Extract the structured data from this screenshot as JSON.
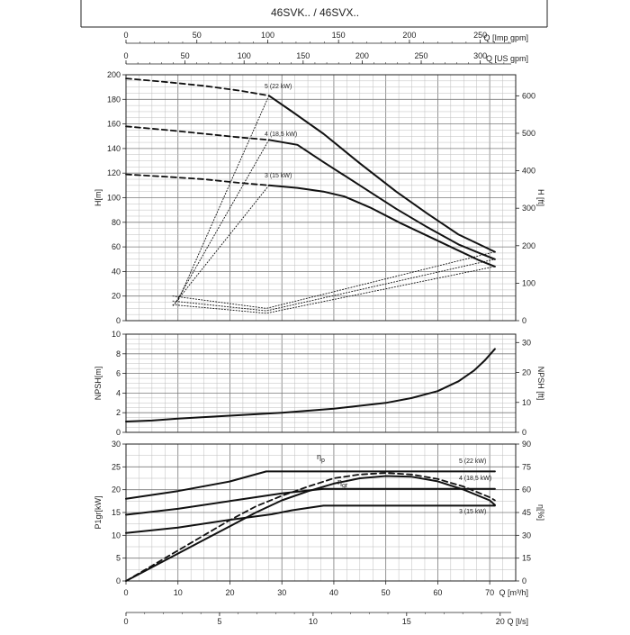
{
  "header": {
    "title": "46SVK.. / 46SVX.."
  },
  "colors": {
    "curve": "#111111",
    "grid_minor": "#bdbdbd",
    "grid_major": "#7a7a7a",
    "frame": "#222222"
  },
  "chart_data": [
    {
      "type": "line",
      "id": "head",
      "x_unit": "m3/h",
      "xlim": [
        0,
        75
      ],
      "ylim": [
        0,
        200
      ],
      "ylabel": "H[m]",
      "ylabel_right": "H [ft]",
      "yticks": [
        0,
        20,
        40,
        60,
        80,
        100,
        120,
        140,
        160,
        180,
        200
      ],
      "yticks_right": [
        0,
        100,
        200,
        300,
        400,
        500,
        600
      ],
      "top_axes": [
        {
          "label": "Q [Imp gpm]",
          "ticks": [
            0,
            50,
            100,
            150,
            200,
            250
          ],
          "max": 275
        },
        {
          "label": "Q [US gpm]",
          "ticks": [
            0,
            50,
            100,
            150,
            200,
            250,
            300
          ],
          "max": 330
        }
      ],
      "series": [
        {
          "name": "5 (22 kW)",
          "style": "solid",
          "x": [
            27.5,
            32,
            38,
            45,
            52,
            58,
            64,
            68,
            71
          ],
          "y": [
            183,
            170,
            152,
            128,
            105,
            87,
            70,
            62,
            56
          ]
        },
        {
          "name": "4 (18,5 kW)",
          "style": "solid",
          "x": [
            27.5,
            33,
            38,
            45,
            52,
            58,
            64,
            68,
            71
          ],
          "y": [
            147,
            143,
            129,
            110,
            91,
            76,
            62,
            55,
            50
          ]
        },
        {
          "name": "3 (15 kW)",
          "style": "solid",
          "x": [
            27.5,
            33,
            38,
            42,
            47,
            53,
            58,
            64,
            68,
            71
          ],
          "y": [
            110,
            108,
            105,
            101,
            92,
            79,
            69,
            57,
            49,
            44
          ]
        },
        {
          "name": "",
          "style": "dashed",
          "x": [
            0,
            8,
            15,
            22,
            27.5
          ],
          "y": [
            197,
            194,
            191,
            187,
            183
          ]
        },
        {
          "name": "",
          "style": "dashed",
          "x": [
            0,
            8,
            15,
            22,
            27.5
          ],
          "y": [
            158,
            155,
            152,
            149,
            147
          ]
        },
        {
          "name": "",
          "style": "dashed",
          "x": [
            0,
            8,
            15,
            22,
            27.5
          ],
          "y": [
            119,
            117,
            115,
            112,
            110
          ]
        },
        {
          "name": "",
          "style": "dotted",
          "x": [
            27.5,
            10
          ],
          "y": [
            183,
            16
          ]
        },
        {
          "name": "",
          "style": "dotted",
          "x": [
            27.5,
            9.5
          ],
          "y": [
            147,
            14
          ]
        },
        {
          "name": "",
          "style": "dotted",
          "x": [
            27.5,
            9
          ],
          "y": [
            110,
            12
          ]
        },
        {
          "name": "",
          "style": "dotted",
          "x": [
            9,
            27,
            71
          ],
          "y": [
            20,
            10,
            56
          ]
        },
        {
          "name": "",
          "style": "dotted",
          "x": [
            9,
            27,
            71
          ],
          "y": [
            16,
            8,
            50
          ]
        },
        {
          "name": "",
          "style": "dotted",
          "x": [
            9,
            27,
            71
          ],
          "y": [
            13,
            6,
            44
          ]
        }
      ]
    },
    {
      "type": "line",
      "id": "npsh",
      "xlim": [
        0,
        75
      ],
      "ylim": [
        0,
        10
      ],
      "ylabel": "NPSH[m]",
      "ylabel_right": "NPSH [ft]",
      "yticks": [
        0,
        2,
        4,
        6,
        8,
        10
      ],
      "yticks_right": [
        0,
        10,
        20,
        30
      ],
      "series": [
        {
          "name": "",
          "style": "solid",
          "x": [
            0,
            5,
            10,
            20,
            30,
            40,
            50,
            55,
            60,
            64,
            67,
            69,
            71
          ],
          "y": [
            1.1,
            1.2,
            1.4,
            1.7,
            2.0,
            2.4,
            3.0,
            3.5,
            4.2,
            5.2,
            6.3,
            7.3,
            8.5
          ]
        }
      ]
    },
    {
      "type": "line",
      "id": "power",
      "xlim": [
        0,
        75
      ],
      "ylim": [
        0,
        30
      ],
      "ylabel": "P1gr[kW]",
      "ylabel_right": "η[%]",
      "yticks": [
        0,
        5,
        10,
        15,
        20,
        25,
        30
      ],
      "yticks_right": [
        0,
        15,
        30,
        45,
        60,
        75,
        90
      ],
      "bottom_axes": [
        {
          "label": "Q [m³/h]",
          "ticks": [
            0,
            10,
            20,
            30,
            40,
            50,
            60,
            70
          ],
          "max": 75
        },
        {
          "label": "Q [l/s]",
          "ticks": [
            0,
            5,
            10,
            15,
            20
          ],
          "max": 20.83
        }
      ],
      "eta_labels": {
        "pump": "ηp",
        "group": "ηgr"
      },
      "series": [
        {
          "name": "5 (22 kW)",
          "style": "solid",
          "x": [
            0,
            10,
            20,
            27,
            40,
            55,
            71
          ],
          "y": [
            18,
            19.7,
            21.8,
            24,
            24,
            24,
            24
          ]
        },
        {
          "name": "4 (18,5 kW)",
          "style": "solid",
          "x": [
            0,
            10,
            20,
            30,
            38,
            55,
            71
          ],
          "y": [
            14.5,
            15.8,
            17.5,
            19.2,
            20.2,
            20.2,
            20.2
          ]
        },
        {
          "name": "3 (15 kW)",
          "style": "solid",
          "x": [
            0,
            10,
            20,
            28,
            32,
            38,
            55,
            71
          ],
          "y": [
            10.5,
            11.7,
            13.4,
            14.6,
            15.5,
            16.5,
            16.5,
            16.5
          ]
        },
        {
          "name": "ηp",
          "style": "dashed",
          "unit": "%",
          "x": [
            0,
            5,
            10,
            15,
            20,
            25,
            30,
            35,
            40,
            45,
            50,
            55,
            60,
            65,
            70,
            71
          ],
          "y": [
            0,
            10,
            20,
            30,
            40,
            49,
            56,
            62,
            67.5,
            70,
            71,
            70,
            67,
            62,
            55,
            53
          ]
        },
        {
          "name": "ηgr",
          "style": "solid",
          "unit": "%",
          "x": [
            0,
            5,
            10,
            15,
            20,
            25,
            30,
            35,
            40,
            45,
            50,
            55,
            60,
            65,
            70,
            71
          ],
          "y": [
            0,
            9,
            18,
            27,
            36,
            45,
            53,
            59,
            64,
            67.5,
            69,
            68.5,
            65.5,
            60,
            53,
            50
          ]
        }
      ]
    }
  ]
}
